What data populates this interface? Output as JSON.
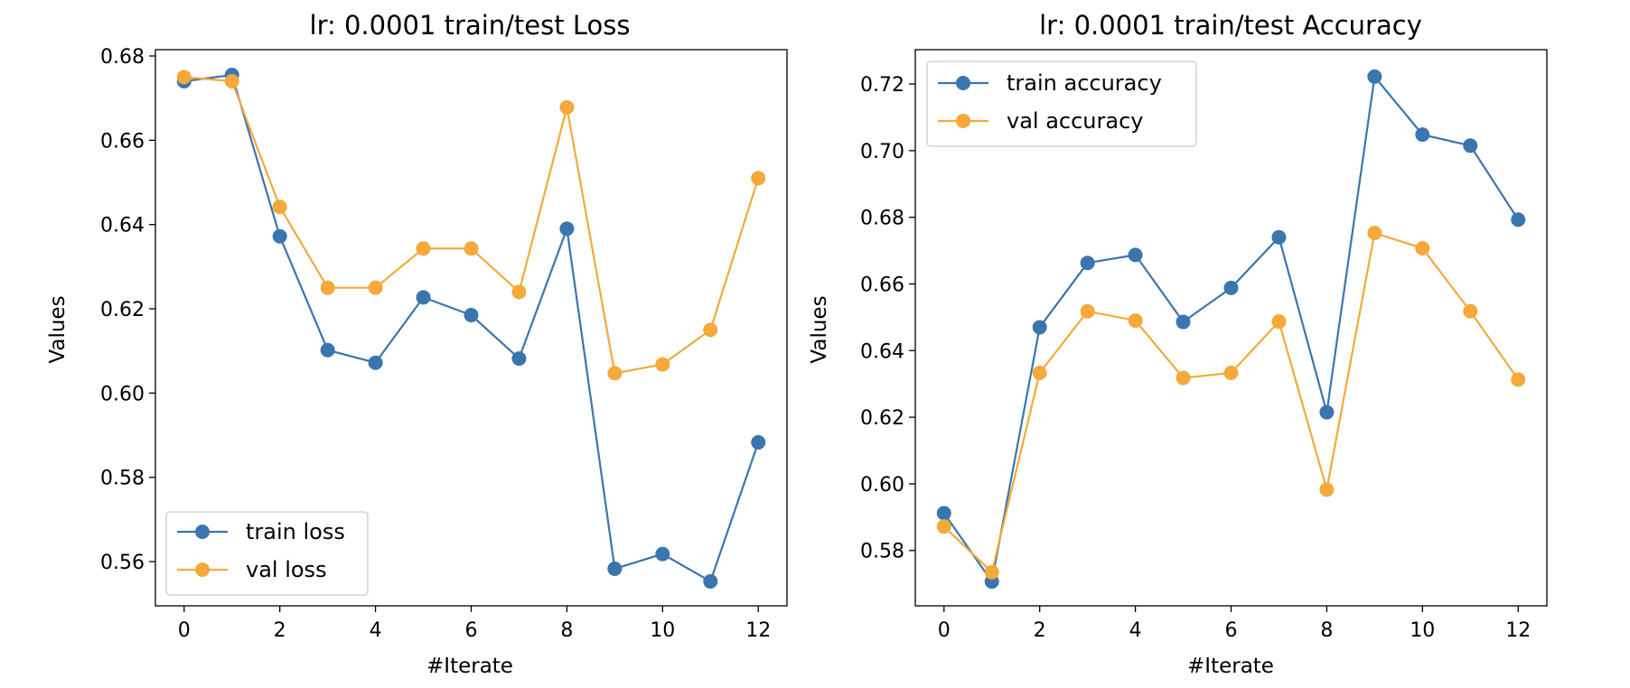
{
  "colors": {
    "train": "#3b75af",
    "val": "#f5a93a"
  },
  "chart_data": [
    {
      "type": "line",
      "title": "lr: 0.0001 train/test Loss",
      "xlabel": "#Iterate",
      "ylabel": "Values",
      "x": [
        0,
        1,
        2,
        3,
        4,
        5,
        6,
        7,
        8,
        9,
        10,
        11,
        12
      ],
      "xticks": [
        0,
        2,
        4,
        6,
        8,
        10,
        12
      ],
      "xtick_labels": [
        "0",
        "2",
        "4",
        "6",
        "8",
        "10",
        "12"
      ],
      "yticks": [
        0.56,
        0.58,
        0.6,
        0.62,
        0.64,
        0.66,
        0.68
      ],
      "ytick_labels": [
        "0.56",
        "0.58",
        "0.60",
        "0.62",
        "0.64",
        "0.66",
        "0.68"
      ],
      "xlim": [
        -0.6,
        12.6
      ],
      "ylim": [
        0.5495,
        0.6815
      ],
      "legend_position": "lower-left",
      "grid": false,
      "series": [
        {
          "name": "train loss",
          "color_key": "train",
          "values": [
            0.674,
            0.6755,
            0.6372,
            0.6102,
            0.6072,
            0.6227,
            0.6185,
            0.6082,
            0.639,
            0.5583,
            0.5618,
            0.5553,
            0.5883
          ]
        },
        {
          "name": "val loss",
          "color_key": "val",
          "values": [
            0.675,
            0.674,
            0.6442,
            0.625,
            0.625,
            0.6343,
            0.6343,
            0.624,
            0.6678,
            0.6047,
            0.6068,
            0.615,
            0.651
          ]
        }
      ]
    },
    {
      "type": "line",
      "title": "lr: 0.0001 train/test Accuracy",
      "xlabel": "#Iterate",
      "ylabel": "Values",
      "x": [
        0,
        1,
        2,
        3,
        4,
        5,
        6,
        7,
        8,
        9,
        10,
        11,
        12
      ],
      "xticks": [
        0,
        2,
        4,
        6,
        8,
        10,
        12
      ],
      "xtick_labels": [
        "0",
        "2",
        "4",
        "6",
        "8",
        "10",
        "12"
      ],
      "yticks": [
        0.58,
        0.6,
        0.62,
        0.64,
        0.66,
        0.68,
        0.7,
        0.72
      ],
      "ytick_labels": [
        "0.58",
        "0.60",
        "0.62",
        "0.64",
        "0.66",
        "0.68",
        "0.70",
        "0.72"
      ],
      "xlim": [
        -0.6,
        12.6
      ],
      "ylim": [
        0.5634,
        0.7303
      ],
      "legend_position": "upper-left",
      "grid": false,
      "series": [
        {
          "name": "train accuracy",
          "color_key": "train",
          "values": [
            0.5912,
            0.5707,
            0.647,
            0.6663,
            0.6687,
            0.6486,
            0.6588,
            0.674,
            0.6215,
            0.7222,
            0.7048,
            0.7015,
            0.6793
          ]
        },
        {
          "name": "val accuracy",
          "color_key": "val",
          "values": [
            0.5872,
            0.5735,
            0.6333,
            0.6518,
            0.649,
            0.6318,
            0.6333,
            0.6487,
            0.5983,
            0.6753,
            0.6707,
            0.6518,
            0.6313
          ]
        }
      ]
    }
  ]
}
